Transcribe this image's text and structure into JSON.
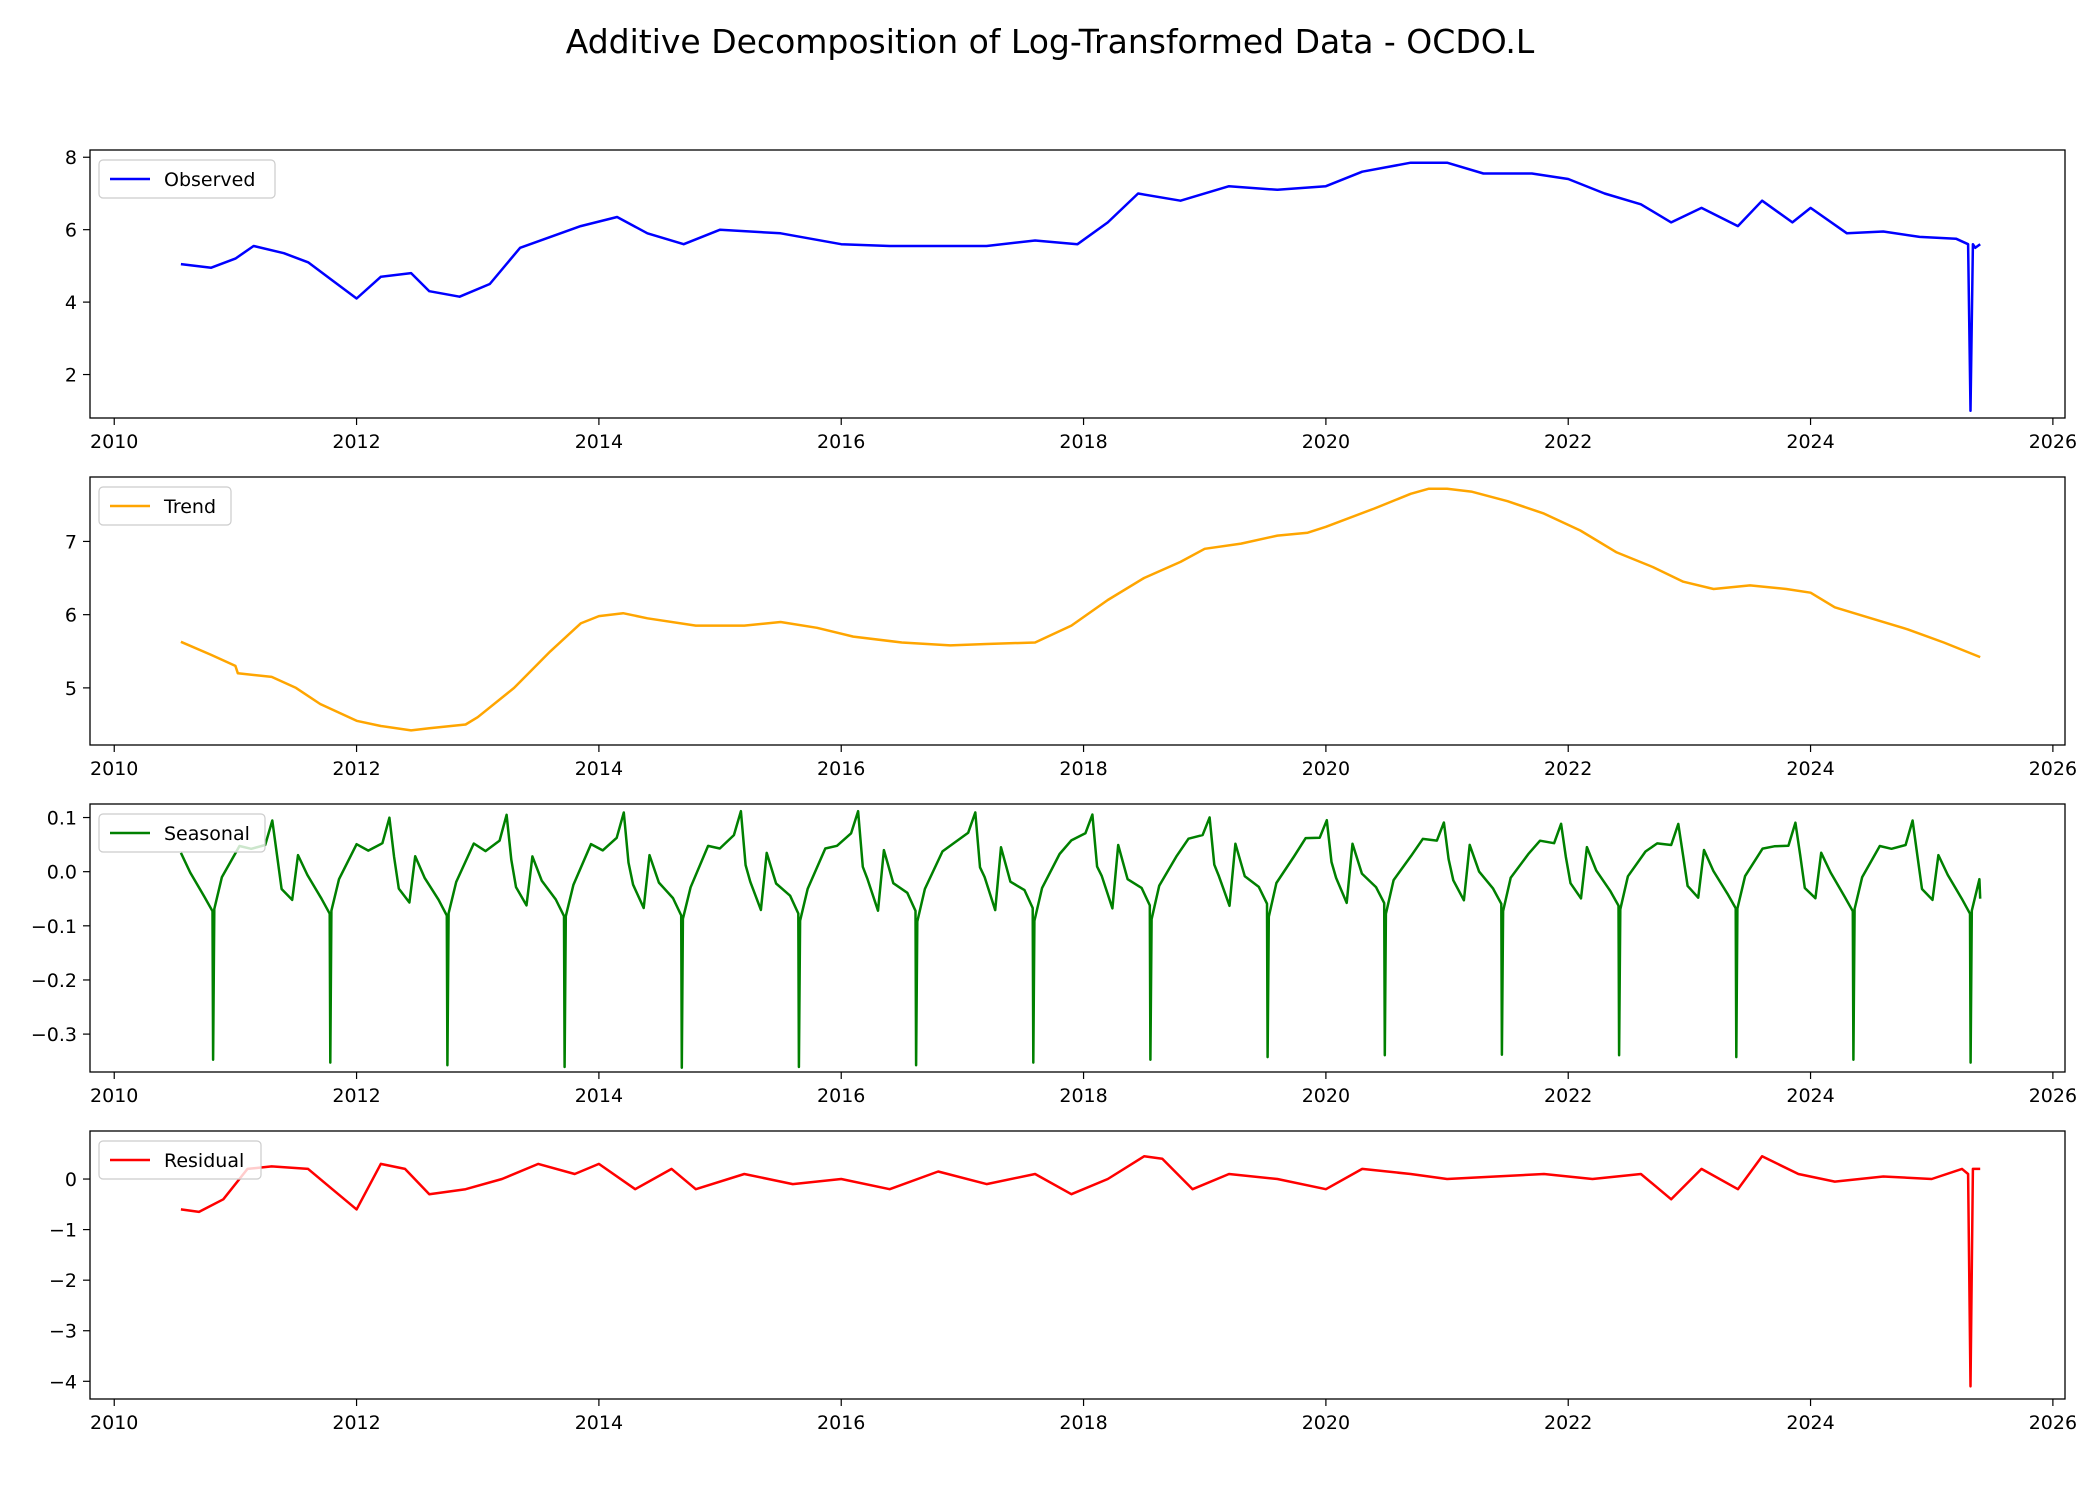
{
  "figure": {
    "title": "Additive Decomposition of Log-Transformed Data - OCDO.L"
  },
  "chart_data": [
    {
      "type": "line",
      "legend": "Observed",
      "legend_placement": "upper-left",
      "color": "#0000ff",
      "xlim": [
        2009.8,
        2026.1
      ],
      "ylim": [
        0.8,
        8.2
      ],
      "yticks": [
        2,
        4,
        6,
        8
      ],
      "ytick_labels": [
        "2",
        "4",
        "6",
        "8"
      ],
      "xticks": [
        2010,
        2012,
        2014,
        2016,
        2018,
        2020,
        2022,
        2024,
        2026
      ],
      "xtick_labels": [
        "2010",
        "2012",
        "2014",
        "2016",
        "2018",
        "2020",
        "2022",
        "2024",
        "2026"
      ],
      "x": [
        2010.55,
        2010.8,
        2011.0,
        2011.15,
        2011.4,
        2011.6,
        2011.8,
        2012.0,
        2012.2,
        2012.45,
        2012.6,
        2012.85,
        2013.1,
        2013.35,
        2013.6,
        2013.85,
        2014.15,
        2014.4,
        2014.7,
        2015.0,
        2015.5,
        2016.0,
        2016.4,
        2016.8,
        2017.2,
        2017.6,
        2017.95,
        2018.2,
        2018.45,
        2018.8,
        2019.2,
        2019.6,
        2020.0,
        2020.3,
        2020.7,
        2021.0,
        2021.3,
        2021.7,
        2022.0,
        2022.3,
        2022.6,
        2022.85,
        2023.1,
        2023.4,
        2023.6,
        2023.85,
        2024.0,
        2024.3,
        2024.6,
        2024.9,
        2025.2,
        2025.3,
        2025.32,
        2025.34,
        2025.36,
        2025.4
      ],
      "y": [
        5.05,
        4.95,
        5.2,
        5.55,
        5.35,
        5.1,
        4.6,
        4.1,
        4.7,
        4.8,
        4.3,
        4.15,
        4.5,
        5.5,
        5.8,
        6.1,
        6.35,
        5.9,
        5.6,
        6.0,
        5.9,
        5.6,
        5.55,
        5.55,
        5.55,
        5.7,
        5.6,
        6.2,
        7.0,
        6.8,
        7.2,
        7.1,
        7.2,
        7.6,
        7.85,
        7.85,
        7.55,
        7.55,
        7.4,
        7.0,
        6.7,
        6.2,
        6.6,
        6.1,
        6.8,
        6.2,
        6.6,
        5.9,
        5.95,
        5.8,
        5.75,
        5.6,
        1.0,
        5.6,
        5.5,
        5.6
      ]
    },
    {
      "type": "line",
      "legend": "Trend",
      "legend_placement": "upper-left",
      "color": "#ffa500",
      "xlim": [
        2009.8,
        2026.1
      ],
      "ylim": [
        4.22,
        7.88
      ],
      "yticks": [
        5,
        6,
        7
      ],
      "ytick_labels": [
        "5",
        "6",
        "7"
      ],
      "xticks": [
        2010,
        2012,
        2014,
        2016,
        2018,
        2020,
        2022,
        2024,
        2026
      ],
      "xtick_labels": [
        "2010",
        "2012",
        "2014",
        "2016",
        "2018",
        "2020",
        "2022",
        "2024",
        "2026"
      ],
      "x": [
        2010.55,
        2010.8,
        2011.0,
        2011.02,
        2011.3,
        2011.5,
        2011.7,
        2012.0,
        2012.2,
        2012.45,
        2012.6,
        2012.9,
        2013.0,
        2013.3,
        2013.6,
        2013.85,
        2014.0,
        2014.2,
        2014.4,
        2014.8,
        2015.2,
        2015.5,
        2015.8,
        2016.1,
        2016.5,
        2016.9,
        2017.2,
        2017.6,
        2017.9,
        2018.2,
        2018.5,
        2018.8,
        2019.0,
        2019.3,
        2019.6,
        2019.85,
        2020.0,
        2020.4,
        2020.7,
        2020.85,
        2021.0,
        2021.2,
        2021.5,
        2021.8,
        2022.1,
        2022.4,
        2022.7,
        2022.95,
        2023.2,
        2023.5,
        2023.8,
        2024.0,
        2024.2,
        2024.5,
        2024.8,
        2025.1,
        2025.4
      ],
      "y": [
        5.63,
        5.45,
        5.3,
        5.2,
        5.15,
        5.0,
        4.78,
        4.55,
        4.48,
        4.42,
        4.45,
        4.5,
        4.6,
        5.0,
        5.5,
        5.88,
        5.98,
        6.02,
        5.95,
        5.85,
        5.85,
        5.9,
        5.82,
        5.7,
        5.62,
        5.58,
        5.6,
        5.62,
        5.85,
        6.2,
        6.5,
        6.72,
        6.9,
        6.97,
        7.08,
        7.12,
        7.2,
        7.45,
        7.65,
        7.72,
        7.72,
        7.68,
        7.55,
        7.38,
        7.15,
        6.85,
        6.65,
        6.45,
        6.35,
        6.4,
        6.35,
        6.3,
        6.1,
        5.95,
        5.8,
        5.62,
        5.42
      ]
    },
    {
      "type": "line",
      "legend": "Seasonal",
      "legend_placement": "upper-left",
      "color": "#008000",
      "xlim": [
        2009.8,
        2026.1
      ],
      "ylim": [
        -0.37,
        0.125
      ],
      "yticks": [
        -0.3,
        -0.2,
        -0.1,
        0.0,
        0.1
      ],
      "ytick_labels": [
        "−0.3",
        "−0.2",
        "−0.1",
        "0.0",
        "0.1"
      ],
      "xticks": [
        2010,
        2012,
        2014,
        2016,
        2018,
        2020,
        2022,
        2024,
        2026
      ],
      "xtick_labels": [
        "2010",
        "2012",
        "2014",
        "2016",
        "2018",
        "2020",
        "2022",
        "2024",
        "2026"
      ],
      "period_years": 0.967,
      "cycle_start": 2010.55,
      "cycle_phase": [
        0.0,
        0.08,
        0.2,
        0.27,
        0.275,
        0.285,
        0.35,
        0.5,
        0.6,
        0.72,
        0.78,
        0.82,
        0.86,
        0.95,
        1.0
      ],
      "cycle_value": [
        0.04,
        -0.01,
        -0.04,
        -0.07,
        -0.35,
        -0.08,
        -0.02,
        0.04,
        0.05,
        0.06,
        0.1,
        0.02,
        -0.02,
        -0.06,
        0.04
      ],
      "x_end": 2025.4,
      "y_end": -0.05
    },
    {
      "type": "line",
      "legend": "Residual",
      "legend_placement": "upper-left",
      "color": "#ff0000",
      "xlim": [
        2009.8,
        2026.1
      ],
      "ylim": [
        -4.35,
        0.95
      ],
      "yticks": [
        -4,
        -3,
        -2,
        -1,
        0
      ],
      "ytick_labels": [
        "−4",
        "−3",
        "−2",
        "−1",
        "0"
      ],
      "xticks": [
        2010,
        2012,
        2014,
        2016,
        2018,
        2020,
        2022,
        2024,
        2026
      ],
      "xtick_labels": [
        "2010",
        "2012",
        "2014",
        "2016",
        "2018",
        "2020",
        "2022",
        "2024",
        "2026"
      ],
      "x": [
        2010.55,
        2010.7,
        2010.9,
        2011.1,
        2011.3,
        2011.6,
        2011.8,
        2012.0,
        2012.2,
        2012.4,
        2012.6,
        2012.9,
        2013.2,
        2013.5,
        2013.8,
        2014.0,
        2014.3,
        2014.6,
        2014.8,
        2015.2,
        2015.6,
        2016.0,
        2016.4,
        2016.8,
        2017.2,
        2017.6,
        2017.9,
        2018.2,
        2018.5,
        2018.65,
        2018.9,
        2019.2,
        2019.6,
        2020.0,
        2020.3,
        2020.7,
        2021.0,
        2021.4,
        2021.8,
        2022.2,
        2022.6,
        2022.85,
        2023.1,
        2023.4,
        2023.6,
        2023.9,
        2024.2,
        2024.6,
        2025.0,
        2025.25,
        2025.3,
        2025.32,
        2025.34,
        2025.4
      ],
      "y": [
        -0.6,
        -0.65,
        -0.4,
        0.2,
        0.25,
        0.2,
        -0.2,
        -0.6,
        0.3,
        0.2,
        -0.3,
        -0.2,
        0.0,
        0.3,
        0.1,
        0.3,
        -0.2,
        0.2,
        -0.2,
        0.1,
        -0.1,
        0.0,
        -0.2,
        0.15,
        -0.1,
        0.1,
        -0.3,
        0.0,
        0.45,
        0.4,
        -0.2,
        0.1,
        0.0,
        -0.2,
        0.2,
        0.1,
        0.0,
        0.05,
        0.1,
        0.0,
        0.1,
        -0.4,
        0.2,
        -0.2,
        0.45,
        0.1,
        -0.05,
        0.05,
        0.0,
        0.2,
        0.1,
        -4.1,
        0.2,
        0.2
      ]
    }
  ]
}
